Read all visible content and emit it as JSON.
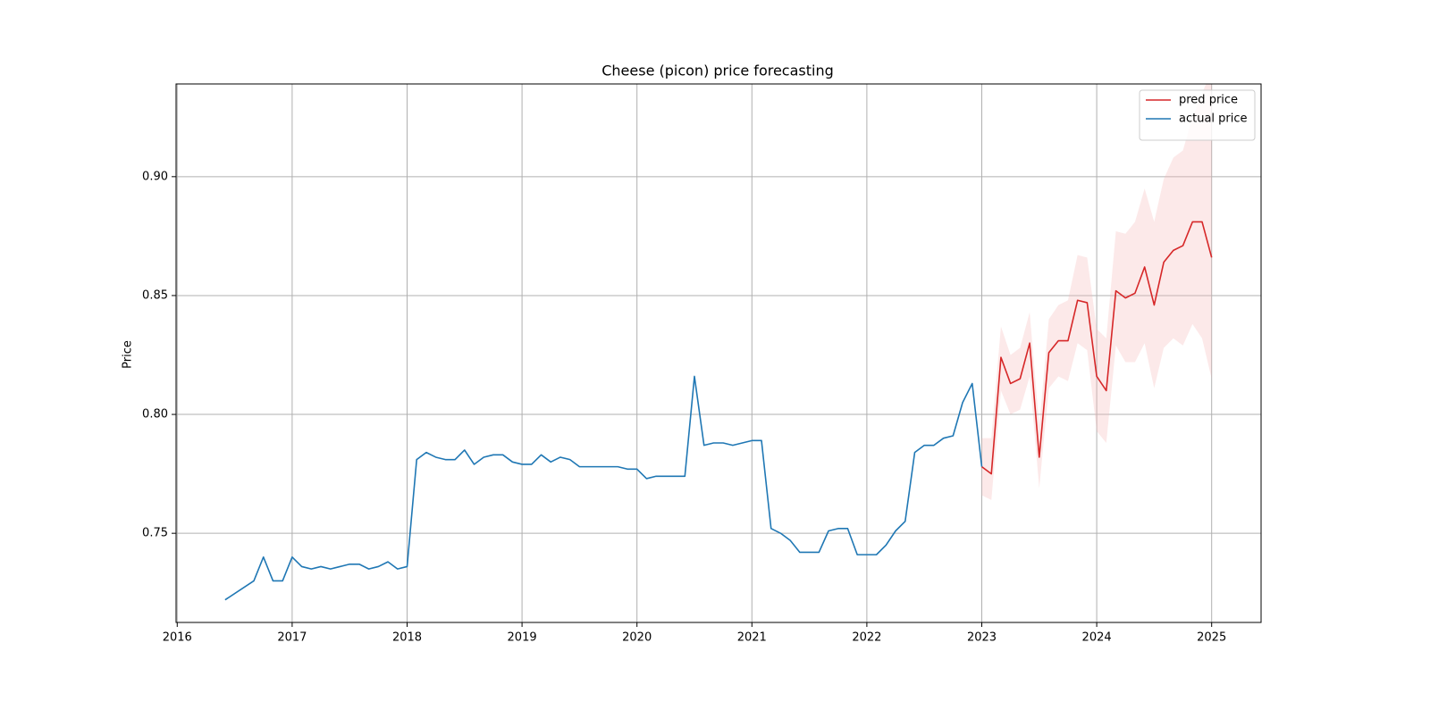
{
  "chart_data": {
    "type": "line",
    "title": "Cheese (picon) price forecasting",
    "y_label": "Price",
    "xlim": [
      2015.99,
      2025.43
    ],
    "xticks": [
      2016,
      2017,
      2018,
      2019,
      2020,
      2021,
      2022,
      2023,
      2024,
      2025
    ],
    "ylim": [
      0.7125,
      0.939
    ],
    "yticks": [
      {
        "value": 0.75,
        "label": "0.75"
      },
      {
        "value": 0.8,
        "label": "0.80"
      },
      {
        "value": 0.85,
        "label": "0.85"
      },
      {
        "value": 0.9,
        "label": "0.90"
      }
    ],
    "grid": true,
    "legend": "upper right",
    "series": [
      {
        "name": "pred price",
        "color": "#d62728",
        "band_color": "#f4b6b7",
        "x": [
          2023.0,
          2023.0833,
          2023.1667,
          2023.25,
          2023.3333,
          2023.4167,
          2023.5,
          2023.5833,
          2023.6667,
          2023.75,
          2023.8333,
          2023.9167,
          2024.0,
          2024.0833,
          2024.1667,
          2024.25,
          2024.3333,
          2024.4167,
          2024.5,
          2024.5833,
          2024.6667,
          2024.75,
          2024.8333,
          2024.9167,
          2025.0
        ],
        "values": [
          0.778,
          0.775,
          0.824,
          0.813,
          0.815,
          0.83,
          0.782,
          0.826,
          0.831,
          0.831,
          0.848,
          0.847,
          0.816,
          0.81,
          0.852,
          0.849,
          0.851,
          0.862,
          0.846,
          0.864,
          0.869,
          0.871,
          0.881,
          0.881,
          0.866
        ],
        "lower": [
          0.766,
          0.764,
          0.81,
          0.8,
          0.802,
          0.816,
          0.769,
          0.811,
          0.816,
          0.814,
          0.83,
          0.827,
          0.793,
          0.788,
          0.829,
          0.822,
          0.822,
          0.83,
          0.811,
          0.828,
          0.832,
          0.829,
          0.838,
          0.832,
          0.815
        ],
        "upper": [
          0.79,
          0.79,
          0.837,
          0.825,
          0.828,
          0.843,
          0.795,
          0.84,
          0.846,
          0.848,
          0.867,
          0.866,
          0.836,
          0.832,
          0.877,
          0.876,
          0.881,
          0.895,
          0.881,
          0.899,
          0.908,
          0.911,
          0.925,
          0.935,
          0.945
        ]
      },
      {
        "name": "actual price",
        "color": "#1f77b4",
        "x": [
          2016.4167,
          2016.6667,
          2016.75,
          2016.8333,
          2016.9167,
          2017.0,
          2017.0833,
          2017.1667,
          2017.25,
          2017.3333,
          2017.4167,
          2017.5,
          2017.5833,
          2017.6667,
          2017.75,
          2017.8333,
          2017.9167,
          2018.0,
          2018.0833,
          2018.1667,
          2018.25,
          2018.3333,
          2018.4167,
          2018.5,
          2018.5833,
          2018.6667,
          2018.75,
          2018.8333,
          2018.9167,
          2019.0,
          2019.0833,
          2019.1667,
          2019.25,
          2019.3333,
          2019.4167,
          2019.5,
          2019.5833,
          2019.6667,
          2019.75,
          2019.8333,
          2019.9167,
          2020.0,
          2020.0833,
          2020.1667,
          2020.25,
          2020.3333,
          2020.4167,
          2020.5,
          2020.5833,
          2020.6667,
          2020.75,
          2020.8333,
          2020.9167,
          2021.0,
          2021.0833,
          2021.1667,
          2021.25,
          2021.3333,
          2021.4167,
          2021.5,
          2021.5833,
          2021.6667,
          2021.75,
          2021.8333,
          2021.9167,
          2022.0,
          2022.0833,
          2022.1667,
          2022.25,
          2022.3333,
          2022.4167,
          2022.5,
          2022.5833,
          2022.6667,
          2022.75,
          2022.8333,
          2022.9167,
          2023.0
        ],
        "values": [
          0.722,
          0.73,
          0.74,
          0.73,
          0.73,
          0.74,
          0.736,
          0.735,
          0.736,
          0.735,
          0.736,
          0.737,
          0.737,
          0.735,
          0.736,
          0.738,
          0.735,
          0.736,
          0.781,
          0.784,
          0.782,
          0.781,
          0.781,
          0.785,
          0.779,
          0.782,
          0.783,
          0.783,
          0.78,
          0.779,
          0.779,
          0.783,
          0.78,
          0.782,
          0.781,
          0.778,
          0.778,
          0.778,
          0.778,
          0.778,
          0.777,
          0.777,
          0.773,
          0.774,
          0.774,
          0.774,
          0.774,
          0.816,
          0.787,
          0.788,
          0.788,
          0.787,
          0.788,
          0.789,
          0.789,
          0.752,
          0.75,
          0.747,
          0.742,
          0.742,
          0.742,
          0.751,
          0.752,
          0.752,
          0.741,
          0.741,
          0.741,
          0.745,
          0.751,
          0.755,
          0.784,
          0.787,
          0.787,
          0.79,
          0.791,
          0.805,
          0.813,
          0.778
        ]
      }
    ]
  }
}
